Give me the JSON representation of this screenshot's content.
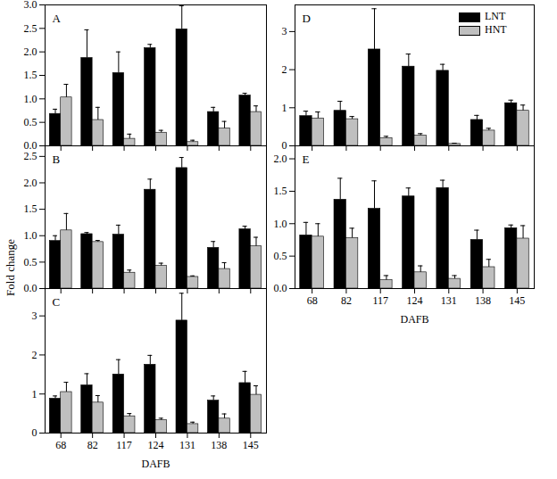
{
  "chart_data": [
    {
      "type": "bar",
      "title": "A",
      "categories": [
        "68",
        "82",
        "117",
        "124",
        "131",
        "138",
        "145"
      ],
      "series": [
        {
          "name": "LNT",
          "color": "#000000",
          "values": [
            0.68,
            1.87,
            1.55,
            2.08,
            2.48,
            0.72,
            1.07
          ],
          "errors": [
            0.1,
            0.6,
            0.45,
            0.08,
            0.5,
            0.1,
            0.05
          ]
        },
        {
          "name": "HNT",
          "color": "#bfbfbf",
          "values": [
            1.03,
            0.55,
            0.15,
            0.28,
            0.08,
            0.37,
            0.72
          ],
          "errors": [
            0.28,
            0.27,
            0.1,
            0.05,
            0.04,
            0.15,
            0.13
          ]
        }
      ],
      "ylim": [
        0,
        3.0
      ],
      "yticks": [
        {
          "value": 0,
          "label": "0.0"
        },
        {
          "value": 0.5,
          "label": "0.5"
        },
        {
          "value": 1,
          "label": "1.0"
        },
        {
          "value": 1.5,
          "label": "1.5"
        },
        {
          "value": 2,
          "label": "2.0"
        },
        {
          "value": 2.5,
          "label": "2.5"
        },
        {
          "value": 3,
          "label": "3.0"
        }
      ],
      "tick_labels": "y"
    },
    {
      "type": "bar",
      "title": "B",
      "y_label": "Fold change",
      "categories": [
        "68",
        "82",
        "117",
        "124",
        "131",
        "138",
        "145"
      ],
      "series": [
        {
          "name": "LNT",
          "color": "#000000",
          "values": [
            0.9,
            1.03,
            1.02,
            1.87,
            2.28,
            0.77,
            1.12
          ],
          "errors": [
            0.1,
            0.03,
            0.18,
            0.2,
            0.2,
            0.12,
            0.06
          ]
        },
        {
          "name": "HNT",
          "color": "#bfbfbf",
          "values": [
            1.1,
            0.88,
            0.3,
            0.43,
            0.22,
            0.37,
            0.8
          ],
          "errors": [
            0.32,
            0.03,
            0.05,
            0.05,
            0.02,
            0.12,
            0.17
          ]
        }
      ],
      "ylim": [
        0,
        2.7
      ],
      "yticks": [
        {
          "value": 0,
          "label": "0.0"
        },
        {
          "value": 0.5,
          "label": "0.5"
        },
        {
          "value": 1,
          "label": "1.0"
        },
        {
          "value": 1.5,
          "label": "1.5"
        },
        {
          "value": 2,
          "label": "2.0"
        },
        {
          "value": 2.5,
          "label": "2.5"
        }
      ],
      "tick_labels": "y"
    },
    {
      "type": "bar",
      "title": "C",
      "x_label": "DAFB",
      "categories": [
        "68",
        "82",
        "117",
        "124",
        "131",
        "138",
        "145"
      ],
      "series": [
        {
          "name": "LNT",
          "color": "#000000",
          "values": [
            0.88,
            1.22,
            1.5,
            1.75,
            2.88,
            0.83,
            1.28
          ],
          "errors": [
            0.07,
            0.3,
            0.38,
            0.24,
            0.7,
            0.12,
            0.3
          ]
        },
        {
          "name": "HNT",
          "color": "#bfbfbf",
          "values": [
            1.05,
            0.78,
            0.43,
            0.33,
            0.23,
            0.37,
            0.98
          ],
          "errors": [
            0.25,
            0.18,
            0.07,
            0.05,
            0.05,
            0.12,
            0.23
          ]
        }
      ],
      "ylim": [
        0,
        3.7
      ],
      "yticks": [
        0,
        1,
        2,
        3
      ]
    },
    {
      "type": "bar",
      "title": "D",
      "legend": "top-right",
      "categories": [
        "68",
        "82",
        "117",
        "124",
        "131",
        "138",
        "145"
      ],
      "series": [
        {
          "name": "LNT",
          "color": "#000000",
          "values": [
            0.78,
            0.92,
            2.53,
            2.08,
            1.97,
            0.68,
            1.12
          ],
          "errors": [
            0.13,
            0.25,
            1.07,
            0.33,
            0.17,
            0.12,
            0.08
          ]
        },
        {
          "name": "HNT",
          "color": "#bfbfbf",
          "values": [
            0.72,
            0.7,
            0.2,
            0.27,
            0.05,
            0.4,
            0.92
          ],
          "errors": [
            0.17,
            0.07,
            0.05,
            0.05,
            0.02,
            0.06,
            0.15
          ]
        }
      ],
      "ylim": [
        0,
        3.7
      ],
      "yticks": [
        0,
        1,
        2,
        3
      ],
      "tick_labels": "y"
    },
    {
      "type": "bar",
      "title": "E",
      "x_label": "DAFB",
      "categories": [
        "68",
        "82",
        "117",
        "124",
        "131",
        "138",
        "145"
      ],
      "series": [
        {
          "name": "LNT",
          "color": "#000000",
          "values": [
            0.82,
            1.37,
            1.23,
            1.42,
            1.55,
            0.75,
            0.93
          ],
          "errors": [
            0.2,
            0.33,
            0.43,
            0.13,
            0.12,
            0.15,
            0.05
          ]
        },
        {
          "name": "HNT",
          "color": "#bfbfbf",
          "values": [
            0.8,
            0.78,
            0.13,
            0.25,
            0.15,
            0.33,
            0.77
          ],
          "errors": [
            0.2,
            0.15,
            0.07,
            0.1,
            0.05,
            0.12,
            0.2
          ]
        }
      ],
      "ylim": [
        0,
        2.2
      ],
      "yticks": [
        {
          "value": 0,
          "label": "0.0"
        },
        {
          "value": 0.5,
          "label": "0.5"
        },
        {
          "value": 1,
          "label": "1.0"
        },
        {
          "value": 1.5,
          "label": "1.5"
        },
        {
          "value": 2,
          "label": "2.0"
        }
      ]
    }
  ]
}
